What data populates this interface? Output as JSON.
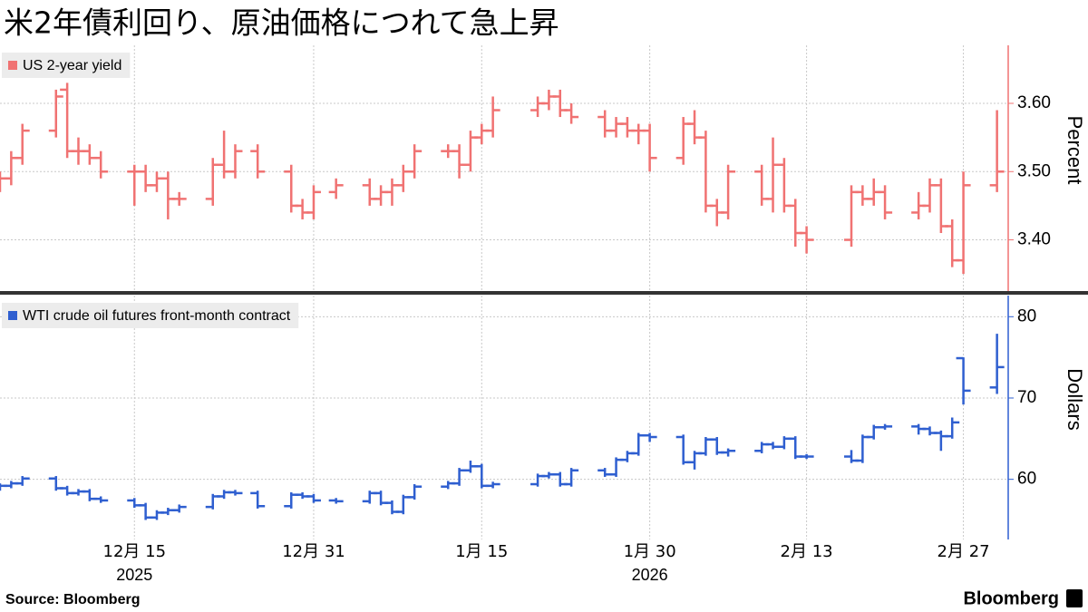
{
  "title": "米2年債利回り、原油価格につれて急上昇",
  "source": "Source:  Bloomberg",
  "logo": "Bloomberg",
  "chart_data": [
    {
      "type": "ohlc",
      "x": [
        "2025-12-03",
        "2025-12-04",
        "2025-12-05",
        "2025-12-08",
        "2025-12-09",
        "2025-12-10",
        "2025-12-11",
        "2025-12-12",
        "2025-12-15",
        "2025-12-16",
        "2025-12-17",
        "2025-12-18",
        "2025-12-19",
        "2025-12-22",
        "2025-12-23",
        "2025-12-24",
        "2025-12-26",
        "2025-12-29",
        "2025-12-30",
        "2025-12-31",
        "2026-01-02",
        "2026-01-05",
        "2026-01-06",
        "2026-01-07",
        "2026-01-08",
        "2026-01-09",
        "2026-01-12",
        "2026-01-13",
        "2026-01-14",
        "2026-01-15",
        "2026-01-16",
        "2026-01-20",
        "2026-01-21",
        "2026-01-22",
        "2026-01-23",
        "2026-01-26",
        "2026-01-27",
        "2026-01-28",
        "2026-01-29",
        "2026-01-30",
        "2026-02-02",
        "2026-02-03",
        "2026-02-04",
        "2026-02-05",
        "2026-02-06",
        "2026-02-09",
        "2026-02-10",
        "2026-02-11",
        "2026-02-12",
        "2026-02-13",
        "2026-02-17",
        "2026-02-18",
        "2026-02-19",
        "2026-02-20",
        "2026-02-23",
        "2026-02-24",
        "2026-02-25",
        "2026-02-26",
        "2026-02-27",
        "2026-03-02"
      ],
      "xlim": [
        "2025-12-03",
        "2026-03-03"
      ],
      "xticks": [
        {
          "value": "2025-12-15",
          "label": "12月 15"
        },
        {
          "value": "2025-12-31",
          "label": "12月 31"
        },
        {
          "value": "2026-01-15",
          "label": "1月 15"
        },
        {
          "value": "2026-01-30",
          "label": "1月 30"
        },
        {
          "value": "2026-02-13",
          "label": "2月 13"
        },
        {
          "value": "2026-02-27",
          "label": "2月 27"
        }
      ],
      "ylabel": "Percent",
      "ylim": [
        3.325,
        3.685
      ],
      "yticks": [
        {
          "value": 3.4,
          "label": "3.40"
        },
        {
          "value": 3.5,
          "label": "3.50"
        },
        {
          "value": 3.6,
          "label": "3.60"
        }
      ],
      "series": [
        {
          "name": "US 2-year yield",
          "color": "#f07272",
          "open": [
            3.48,
            3.49,
            3.52,
            3.56,
            3.62,
            3.53,
            3.53,
            3.52,
            3.5,
            3.5,
            3.48,
            3.49,
            3.46,
            3.46,
            3.51,
            3.5,
            3.53,
            3.5,
            3.45,
            3.44,
            3.47,
            3.48,
            3.46,
            3.47,
            3.48,
            3.5,
            3.53,
            3.53,
            3.51,
            3.55,
            3.56,
            3.59,
            3.6,
            3.61,
            3.59,
            3.58,
            3.56,
            3.57,
            3.56,
            3.56,
            3.52,
            3.57,
            3.55,
            3.45,
            3.44,
            3.5,
            3.46,
            3.51,
            3.45,
            3.41,
            3.4,
            3.47,
            3.46,
            3.47,
            3.44,
            3.45,
            3.48,
            3.42,
            3.37,
            3.48
          ],
          "high": [
            3.5,
            3.53,
            3.57,
            3.62,
            3.63,
            3.55,
            3.54,
            3.53,
            3.51,
            3.51,
            3.5,
            3.5,
            3.47,
            3.52,
            3.56,
            3.54,
            3.54,
            3.51,
            3.46,
            3.48,
            3.49,
            3.49,
            3.48,
            3.49,
            3.51,
            3.54,
            3.54,
            3.54,
            3.56,
            3.57,
            3.61,
            3.61,
            3.62,
            3.62,
            3.6,
            3.59,
            3.58,
            3.58,
            3.57,
            3.57,
            3.58,
            3.59,
            3.56,
            3.46,
            3.51,
            3.51,
            3.55,
            3.52,
            3.46,
            3.42,
            3.48,
            3.48,
            3.49,
            3.48,
            3.47,
            3.49,
            3.49,
            3.43,
            3.5,
            3.59
          ],
          "low": [
            3.47,
            3.48,
            3.51,
            3.55,
            3.52,
            3.51,
            3.51,
            3.49,
            3.45,
            3.47,
            3.47,
            3.43,
            3.45,
            3.45,
            3.49,
            3.49,
            3.49,
            3.44,
            3.43,
            3.43,
            3.46,
            3.45,
            3.45,
            3.45,
            3.47,
            3.49,
            3.52,
            3.49,
            3.5,
            3.54,
            3.55,
            3.58,
            3.59,
            3.58,
            3.57,
            3.55,
            3.55,
            3.55,
            3.54,
            3.5,
            3.51,
            3.54,
            3.44,
            3.42,
            3.43,
            3.45,
            3.44,
            3.44,
            3.39,
            3.38,
            3.39,
            3.45,
            3.45,
            3.43,
            3.43,
            3.44,
            3.41,
            3.36,
            3.35,
            3.47
          ],
          "close": [
            3.49,
            3.52,
            3.56,
            3.61,
            3.53,
            3.53,
            3.52,
            3.5,
            3.5,
            3.48,
            3.49,
            3.46,
            3.46,
            3.51,
            3.5,
            3.53,
            3.5,
            3.45,
            3.44,
            3.47,
            3.48,
            3.46,
            3.47,
            3.48,
            3.5,
            3.53,
            3.53,
            3.51,
            3.55,
            3.56,
            3.59,
            3.6,
            3.61,
            3.59,
            3.58,
            3.56,
            3.57,
            3.56,
            3.56,
            3.52,
            3.57,
            3.55,
            3.45,
            3.44,
            3.5,
            3.46,
            3.51,
            3.45,
            3.41,
            3.4,
            3.47,
            3.46,
            3.47,
            3.44,
            3.45,
            3.48,
            3.42,
            3.37,
            3.48,
            3.5
          ]
        }
      ]
    },
    {
      "type": "ohlc",
      "x": [
        "2025-12-03",
        "2025-12-04",
        "2025-12-05",
        "2025-12-08",
        "2025-12-09",
        "2025-12-10",
        "2025-12-11",
        "2025-12-12",
        "2025-12-15",
        "2025-12-16",
        "2025-12-17",
        "2025-12-18",
        "2025-12-19",
        "2025-12-22",
        "2025-12-23",
        "2025-12-24",
        "2025-12-26",
        "2025-12-29",
        "2025-12-30",
        "2025-12-31",
        "2026-01-02",
        "2026-01-05",
        "2026-01-06",
        "2026-01-07",
        "2026-01-08",
        "2026-01-09",
        "2026-01-12",
        "2026-01-13",
        "2026-01-14",
        "2026-01-15",
        "2026-01-16",
        "2026-01-20",
        "2026-01-21",
        "2026-01-22",
        "2026-01-23",
        "2026-01-26",
        "2026-01-27",
        "2026-01-28",
        "2026-01-29",
        "2026-01-30",
        "2026-02-02",
        "2026-02-03",
        "2026-02-04",
        "2026-02-05",
        "2026-02-06",
        "2026-02-09",
        "2026-02-10",
        "2026-02-11",
        "2026-02-12",
        "2026-02-13",
        "2026-02-17",
        "2026-02-18",
        "2026-02-19",
        "2026-02-20",
        "2026-02-23",
        "2026-02-24",
        "2026-02-25",
        "2026-02-26",
        "2026-02-27",
        "2026-03-02"
      ],
      "xlim": [
        "2025-12-03",
        "2026-03-03"
      ],
      "xticks": [
        {
          "value": "2025-12-15",
          "label": "12月 15"
        },
        {
          "value": "2025-12-31",
          "label": "12月 31"
        },
        {
          "value": "2026-01-15",
          "label": "1月 15"
        },
        {
          "value": "2026-01-30",
          "label": "1月 30"
        },
        {
          "value": "2026-02-13",
          "label": "2月 13"
        },
        {
          "value": "2026-02-27",
          "label": "2月 27"
        }
      ],
      "year_labels": [
        {
          "value": "2025-12-15",
          "label": "2025"
        },
        {
          "value": "2026-01-30",
          "label": "2026"
        }
      ],
      "ylabel": "Dollars",
      "ylim": [
        52.6,
        82.6
      ],
      "yticks": [
        60,
        70,
        80
      ],
      "series": [
        {
          "name": "WTI crude oil futures front-month contract",
          "color": "#2f5fd0",
          "open": [
            58.9,
            59.2,
            59.5,
            60.1,
            58.9,
            58.3,
            58.5,
            57.6,
            57.4,
            56.8,
            55.3,
            55.9,
            56.2,
            56.6,
            57.9,
            58.4,
            58.3,
            56.7,
            58.1,
            57.9,
            57.4,
            57.3,
            58.3,
            57.1,
            56.0,
            57.8,
            59.1,
            59.5,
            61.1,
            61.6,
            59.2,
            59.4,
            60.4,
            60.6,
            59.4,
            61.1,
            60.6,
            62.4,
            63.2,
            65.4,
            65.2,
            62.1,
            63.2,
            64.9,
            63.3,
            63.5,
            64.3,
            64.0,
            65.0,
            62.8,
            62.8,
            62.3,
            65.2,
            66.4,
            66.5,
            66.2,
            65.7,
            65.3,
            74.9,
            71.3
          ],
          "high": [
            59.5,
            59.8,
            60.4,
            60.4,
            59.2,
            58.8,
            58.8,
            57.9,
            57.7,
            57.1,
            56.2,
            56.5,
            56.9,
            58.2,
            58.7,
            58.7,
            58.6,
            58.4,
            58.4,
            58.2,
            57.7,
            58.6,
            58.6,
            57.4,
            58.1,
            59.4,
            59.8,
            61.4,
            62.3,
            61.9,
            59.7,
            60.7,
            60.9,
            60.9,
            61.4,
            61.4,
            62.7,
            63.5,
            65.7,
            65.7,
            65.5,
            63.5,
            65.2,
            65.2,
            63.8,
            64.6,
            64.6,
            65.3,
            65.3,
            63.1,
            63.6,
            65.5,
            66.7,
            66.8,
            66.8,
            66.5,
            66.0,
            67.6,
            75.0,
            77.9
          ],
          "low": [
            58.6,
            58.9,
            59.2,
            58.6,
            58.0,
            58.0,
            57.3,
            57.1,
            56.5,
            55.0,
            55.0,
            55.6,
            55.9,
            56.3,
            57.6,
            58.0,
            56.4,
            56.4,
            57.6,
            57.1,
            57.0,
            57.0,
            56.8,
            55.7,
            55.7,
            57.5,
            58.8,
            59.2,
            60.8,
            58.9,
            58.9,
            59.1,
            60.1,
            59.1,
            59.1,
            60.3,
            60.3,
            62.1,
            62.9,
            64.6,
            61.8,
            61.2,
            62.9,
            63.0,
            62.8,
            63.2,
            63.7,
            63.7,
            62.5,
            62.5,
            62.0,
            62.0,
            64.9,
            66.1,
            65.5,
            65.4,
            63.5,
            65.0,
            69.2,
            70.5
          ],
          "close": [
            59.2,
            59.5,
            60.1,
            58.9,
            58.3,
            58.5,
            57.6,
            57.4,
            56.8,
            55.3,
            55.9,
            56.2,
            56.6,
            57.9,
            58.4,
            58.3,
            56.7,
            58.1,
            57.9,
            57.4,
            57.3,
            58.3,
            57.1,
            56.0,
            57.8,
            59.1,
            59.5,
            61.1,
            61.6,
            59.2,
            59.4,
            60.4,
            60.6,
            59.4,
            61.1,
            60.6,
            62.4,
            63.2,
            65.4,
            65.2,
            62.1,
            63.2,
            64.9,
            63.3,
            63.5,
            64.3,
            64.0,
            65.0,
            62.8,
            62.8,
            62.3,
            65.2,
            66.4,
            66.5,
            66.2,
            65.7,
            65.3,
            67.0,
            70.9,
            73.8
          ]
        }
      ]
    }
  ]
}
